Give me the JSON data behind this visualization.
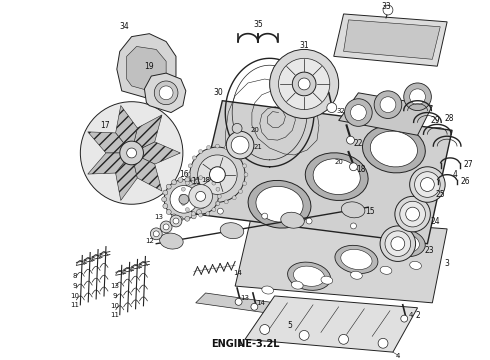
{
  "caption": "ENGINE-3.2L",
  "bg": "#f5f5f0",
  "fg": "#222222",
  "caption_fontsize": 7,
  "caption_fontweight": "bold",
  "fig_w": 4.9,
  "fig_h": 3.6,
  "dpi": 100
}
